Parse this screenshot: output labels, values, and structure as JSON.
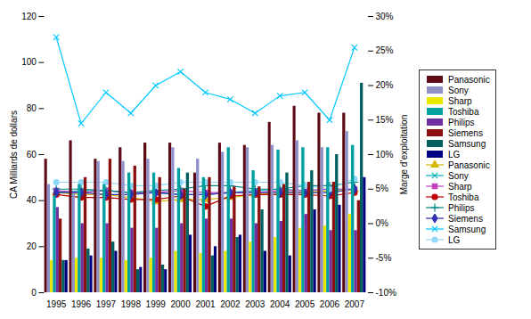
{
  "chart_data": {
    "type": "bar",
    "categories": [
      "1995",
      "1996",
      "1997",
      "1998",
      "1999",
      "2000",
      "2001",
      "2002",
      "2003",
      "2004",
      "2005",
      "2006",
      "2007"
    ],
    "series": [
      {
        "name": "Panasonic",
        "type": "bar",
        "color": "#5C0A14",
        "values": [
          58,
          66,
          58,
          63,
          65,
          65,
          52,
          65,
          64,
          74,
          81,
          78,
          78
        ]
      },
      {
        "name": "Sony",
        "type": "bar",
        "color": "#9090C8",
        "values": [
          47,
          43,
          57,
          57,
          58,
          63,
          58,
          61,
          63,
          64,
          66,
          63,
          70
        ]
      },
      {
        "name": "Sharp",
        "type": "bar",
        "color": "#E8E800",
        "values": [
          14,
          15,
          15,
          14,
          15,
          18,
          17,
          18,
          22,
          24,
          28,
          29,
          34
        ]
      },
      {
        "name": "Toshiba",
        "type": "bar",
        "color": "#00A0A0",
        "values": [
          42,
          47,
          47,
          52,
          52,
          54,
          50,
          63,
          53,
          62,
          63,
          63,
          64
        ]
      },
      {
        "name": "Philips",
        "type": "bar",
        "color": "#7030A0",
        "values": [
          37,
          30,
          30,
          28,
          28,
          30,
          32,
          32,
          30,
          31,
          34,
          27,
          27
        ]
      },
      {
        "name": "Siemens",
        "type": "bar",
        "color": "#8B1010",
        "values": [
          32,
          50,
          58,
          55,
          50,
          45,
          50,
          46,
          46,
          47,
          48,
          48,
          40
        ]
      },
      {
        "name": "Samsung",
        "type": "bar",
        "color": "#006060",
        "values": [
          14,
          19,
          22,
          10,
          12,
          52,
          16,
          24,
          36,
          52,
          53,
          60,
          91
        ]
      },
      {
        "name": "LG",
        "type": "bar",
        "color": "#000080",
        "values": [
          14,
          16,
          18,
          11,
          10,
          25,
          20,
          25,
          18,
          16,
          36,
          38,
          50
        ]
      },
      {
        "name": "Panasonic",
        "type": "line",
        "axis": "y2",
        "color": "#D4B800",
        "marker": "triangle",
        "values": [
          4.5,
          4.2,
          4.2,
          3.8,
          3.2,
          3.5,
          3.5,
          3.8,
          4.2,
          4.5,
          4.5,
          4.8,
          5.0
        ]
      },
      {
        "name": "Sony",
        "type": "line",
        "axis": "y2",
        "color": "#00B8B8",
        "marker": "x",
        "values": [
          4.5,
          4.8,
          4.8,
          4.5,
          4.5,
          4.2,
          4.2,
          4.5,
          4.8,
          5.0,
          4.8,
          5.0,
          5.0
        ]
      },
      {
        "name": "Sharp",
        "type": "line",
        "axis": "y2",
        "color": "#C040C0",
        "marker": "square",
        "values": [
          4.8,
          4.5,
          4.8,
          4.5,
          4.5,
          4.8,
          4.5,
          4.5,
          4.5,
          4.8,
          4.8,
          5.0,
          5.0
        ]
      },
      {
        "name": "Toshiba",
        "type": "line",
        "axis": "y2",
        "color": "#C00000",
        "marker": "circle",
        "values": [
          4.2,
          3.8,
          3.8,
          3.5,
          3.5,
          4.0,
          2.5,
          4.0,
          4.2,
          4.2,
          4.2,
          4.0,
          4.5
        ]
      },
      {
        "name": "Philips",
        "type": "line",
        "axis": "y2",
        "color": "#008888",
        "marker": "plus",
        "values": [
          5.0,
          5.0,
          4.8,
          4.5,
          4.8,
          5.0,
          5.5,
          5.5,
          5.0,
          5.0,
          5.5,
          5.5,
          6.0
        ]
      },
      {
        "name": "Siemens",
        "type": "line",
        "axis": "y2",
        "color": "#3030B0",
        "marker": "diamond",
        "values": [
          4.5,
          4.5,
          4.2,
          4.2,
          4.5,
          4.2,
          4.2,
          4.5,
          4.5,
          4.5,
          4.5,
          4.5,
          5.0
        ]
      },
      {
        "name": "Samsung",
        "type": "line",
        "axis": "y2",
        "color": "#00C8FF",
        "marker": "x",
        "values": [
          27,
          14.5,
          19,
          16,
          20,
          22,
          19,
          18,
          16,
          18.5,
          19,
          15,
          25.5
        ]
      },
      {
        "name": "LG",
        "type": "line",
        "axis": "y2",
        "color": "#90D8F8",
        "marker": "circle",
        "values": [
          6.0,
          6.0,
          6.0,
          5.5,
          5.5,
          6.0,
          6.0,
          6.0,
          6.0,
          6.0,
          5.5,
          5.0,
          6.5
        ]
      }
    ],
    "ylabel": "CA Milliards de dollars",
    "y2label": "Marge d’exploitation",
    "ylim": [
      0,
      120
    ],
    "yticks": [
      0,
      20,
      40,
      60,
      80,
      100,
      120
    ],
    "y2lim": [
      -10,
      30
    ],
    "y2ticks": [
      {
        "value": -10,
        "label": "-10%"
      },
      {
        "value": -5,
        "label": "-5%"
      },
      {
        "value": 0,
        "label": "0%"
      },
      {
        "value": 5,
        "label": "5%"
      },
      {
        "value": 10,
        "label": "10%"
      },
      {
        "value": 15,
        "label": "15%"
      },
      {
        "value": 20,
        "label": "20%"
      },
      {
        "value": 25,
        "label": "25%"
      },
      {
        "value": 30,
        "label": "30%"
      }
    ],
    "grid": false,
    "legend": "right"
  }
}
